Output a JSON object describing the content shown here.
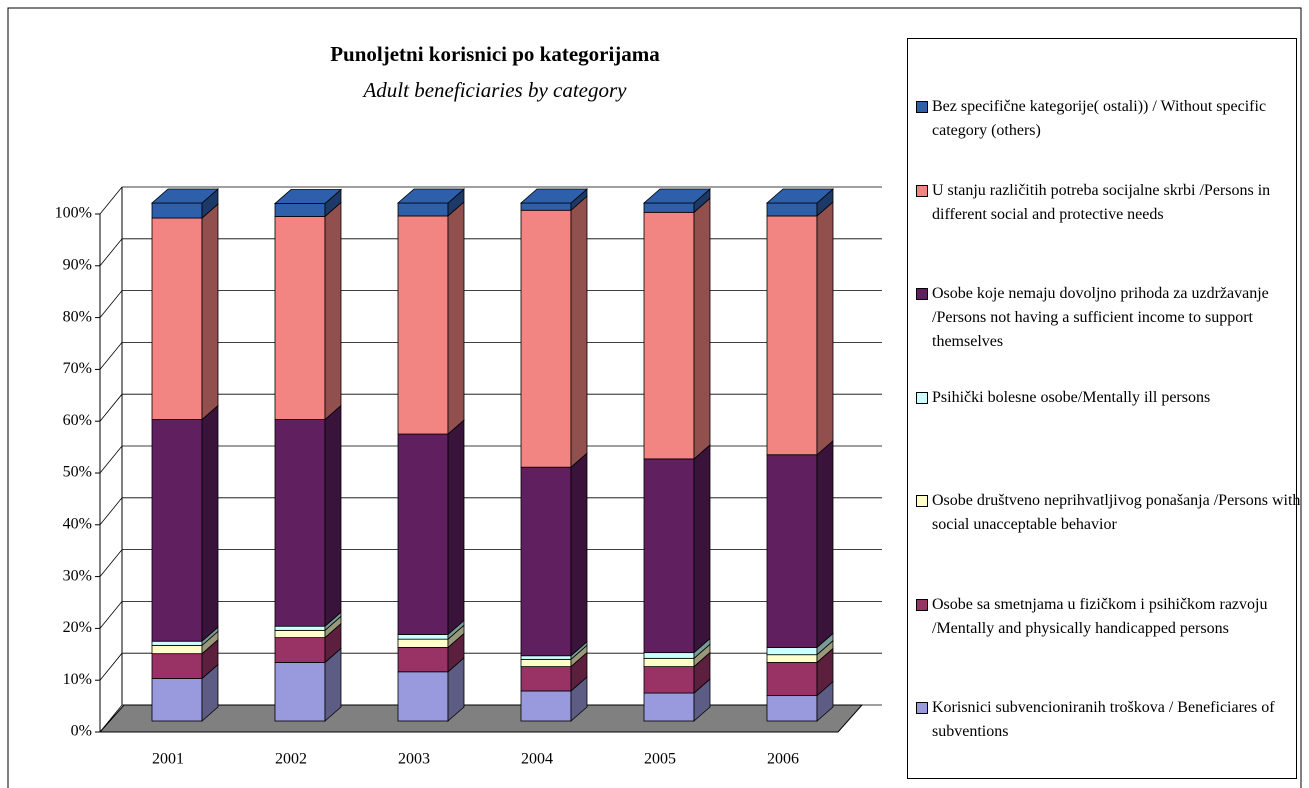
{
  "chart_data": {
    "type": "stacked_bar_3d",
    "title": "Punoljetni korisnici po kategorijama",
    "subtitle": "Adult beneficiaries by category",
    "categories": [
      "2001",
      "2002",
      "2003",
      "2004",
      "2005",
      "2006"
    ],
    "ylim": [
      0,
      100
    ],
    "yticks": [
      {
        "value": 0,
        "label": "0%"
      },
      {
        "value": 10,
        "label": "10%"
      },
      {
        "value": 20,
        "label": "20%"
      },
      {
        "value": 30,
        "label": "30%"
      },
      {
        "value": 40,
        "label": "40%"
      },
      {
        "value": 50,
        "label": "50%"
      },
      {
        "value": 60,
        "label": "60%"
      },
      {
        "value": 70,
        "label": "70%"
      },
      {
        "value": 80,
        "label": "80%"
      },
      {
        "value": 90,
        "label": "90%"
      },
      {
        "value": 100,
        "label": "100%"
      }
    ],
    "grid": true,
    "series": [
      {
        "name": "Korisnici subvencioniranih troškova  / Beneficiares of subventions",
        "color": "#9999dd",
        "values": [
          8.2,
          11.3,
          9.5,
          5.8,
          5.4,
          4.9
        ]
      },
      {
        "name": "Osobe sa smetnjama u fizičkom i psihičkom razvoju  /Mentally and physically handicapped persons",
        "color": "#993366",
        "values": [
          4.8,
          4.8,
          4.7,
          4.7,
          5.1,
          6.4
        ]
      },
      {
        "name": "Osobe društveno neprihvatljivog ponašanja /Persons with social unacceptable behavior",
        "color": "#ffffcc",
        "values": [
          1.6,
          1.4,
          1.6,
          1.4,
          1.6,
          1.5
        ]
      },
      {
        "name": "Psihički bolesne osobe/Mentally ill persons",
        "color": "#ccffff",
        "values": [
          0.8,
          0.8,
          0.9,
          0.7,
          1.1,
          1.4
        ]
      },
      {
        "name": "Osobe koje nemaju dovoljno prihoda za uzdržavanje /Persons not having a sufficient income to support themselves",
        "color": "#602060",
        "values": [
          42.8,
          39.9,
          38.7,
          36.4,
          37.4,
          37.2
        ]
      },
      {
        "name": "U stanju različitih potreba socijalne skrbi /Persons in different social and protective needs",
        "color": "#f28482",
        "values": [
          38.9,
          39.2,
          42.1,
          49.6,
          47.6,
          46.1
        ]
      },
      {
        "name": "Bez specifične kategorije( ostali)) / Without specific category (others)",
        "color": "#2e5fab",
        "values": [
          2.9,
          2.5,
          2.5,
          1.4,
          1.8,
          2.5
        ]
      }
    ]
  }
}
